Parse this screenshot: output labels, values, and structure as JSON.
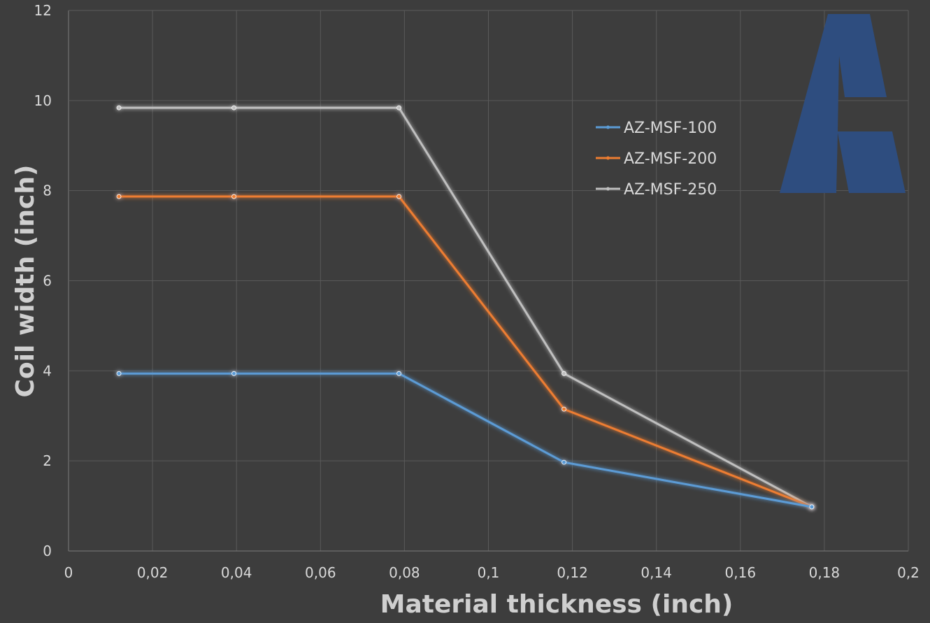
{
  "chart_data": {
    "type": "line",
    "title": "",
    "xlabel": "Material thickness (inch)",
    "ylabel": "Coil width (inch)",
    "xlim": [
      0,
      0.2
    ],
    "ylim": [
      0,
      12
    ],
    "x_ticks": [
      "0",
      "0,02",
      "0,04",
      "0,06",
      "0,08",
      "0,1",
      "0,12",
      "0,14",
      "0,16",
      "0,18",
      "0,2"
    ],
    "y_ticks": [
      "0",
      "2",
      "4",
      "6",
      "8",
      "10",
      "12"
    ],
    "grid": true,
    "legend_position": "top-right",
    "x": [
      0.012,
      0.0394,
      0.0787,
      0.118,
      0.177
    ],
    "series": [
      {
        "name": "AZ-MSF-100",
        "color": "#5b9bd5",
        "values": [
          3.94,
          3.94,
          3.94,
          1.97,
          0.98
        ]
      },
      {
        "name": "AZ-MSF-200",
        "color": "#ed7d31",
        "values": [
          7.87,
          7.87,
          7.87,
          3.15,
          0.98
        ]
      },
      {
        "name": "AZ-MSF-250",
        "color": "#bfbfbf",
        "values": [
          9.84,
          9.84,
          9.84,
          3.94,
          0.98
        ]
      }
    ]
  },
  "logo": {
    "name": "brand-logo",
    "color": "#2e4d7f"
  }
}
